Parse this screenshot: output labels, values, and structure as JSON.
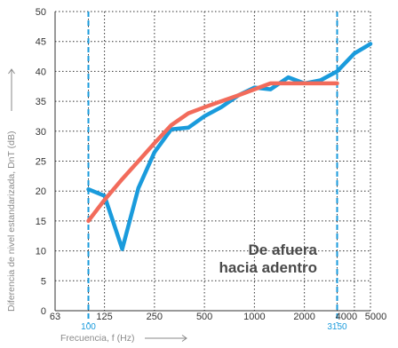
{
  "chart_data": {
    "type": "line",
    "xlabel": "Frecuencia, f (Hz)",
    "ylabel": "Diferencia de nivel estandarizada, DnT (dB)",
    "x_scale": "log",
    "xlim": [
      63,
      5000
    ],
    "ylim": [
      0,
      50
    ],
    "grid": true,
    "x_ticks": [
      {
        "value": 63,
        "label": "63",
        "color": "#333333"
      },
      {
        "value": 100,
        "label": "100",
        "color": "#1a9bdc"
      },
      {
        "value": 125,
        "label": "125",
        "color": "#333333"
      },
      {
        "value": 250,
        "label": "250",
        "color": "#333333"
      },
      {
        "value": 500,
        "label": "500",
        "color": "#333333"
      },
      {
        "value": 1000,
        "label": "1000",
        "color": "#333333"
      },
      {
        "value": 2000,
        "label": "2000",
        "color": "#333333"
      },
      {
        "value": 3150,
        "label": "3150",
        "color": "#1a9bdc"
      },
      {
        "value": 4000,
        "label": "4000",
        "color": "#333333"
      },
      {
        "value": 5000,
        "label": "5000",
        "color": "#333333"
      }
    ],
    "y_ticks": [
      0,
      5,
      10,
      15,
      20,
      25,
      30,
      35,
      40,
      45,
      50
    ],
    "reference_lines": [
      100,
      3150
    ],
    "annotation": [
      "De afuera",
      "hacia adentro"
    ],
    "series": [
      {
        "color": "#1a9bdc",
        "x": [
          100,
          125,
          160,
          200,
          250,
          315,
          400,
          500,
          630,
          800,
          1000,
          1250,
          1600,
          2000,
          2500,
          3150,
          4000,
          5000
        ],
        "y": [
          20.3,
          19.2,
          10.3,
          20.5,
          26.5,
          30.3,
          30.6,
          32.5,
          34.0,
          36.0,
          37.3,
          37.0,
          39.0,
          38.0,
          38.5,
          40.0,
          43.0,
          44.6
        ]
      },
      {
        "color": "#f26b5b",
        "x": [
          100,
          125,
          160,
          200,
          250,
          315,
          400,
          500,
          630,
          800,
          1000,
          1250,
          1600,
          2000,
          2500,
          3150
        ],
        "y": [
          15.0,
          18.5,
          22.0,
          25.0,
          28.0,
          31.0,
          33.0,
          34.0,
          35.0,
          36.0,
          37.0,
          38.0,
          38.0,
          38.0,
          38.0,
          38.0
        ]
      }
    ]
  }
}
